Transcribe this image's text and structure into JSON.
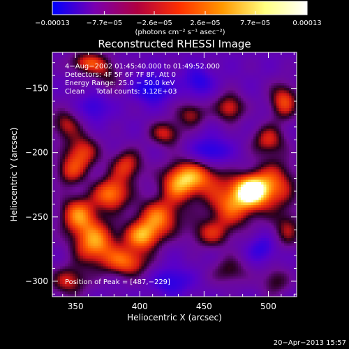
{
  "chart_data": {
    "type": "heatmap",
    "title": "Reconstructed RHESSI Image",
    "xlabel": "Heliocentric X (arcsec)",
    "ylabel": "Heliocentric Y (arcsec)",
    "xlim": [
      332,
      522
    ],
    "ylim": [
      -312,
      -122
    ],
    "x_ticks": [
      350,
      400,
      450,
      500
    ],
    "y_ticks": [
      -300,
      -250,
      -200,
      -150
    ],
    "x_tick_labels": [
      "350",
      "400",
      "450",
      "500"
    ],
    "y_tick_labels": [
      "−300",
      "−250",
      "−200",
      "−150"
    ],
    "colorbar": {
      "min": -0.00013,
      "max": 0.00013,
      "ticks": [
        -0.00013,
        -7.7e-05,
        -2.6e-05,
        2.6e-05,
        7.7e-05,
        0.00013
      ],
      "tick_labels": [
        "−0.00013",
        "−7.7e−05",
        "−2.6e−05",
        "2.6e−05",
        "7.7e−05",
        "0.00013"
      ],
      "label": "(photons cm⁻² s⁻¹ asec⁻²)",
      "colors": [
        "#0000ff",
        "#7a00b0",
        "#b00040",
        "#ff3000",
        "#ff9800",
        "#ffff80",
        "#ffffff"
      ]
    },
    "info": [
      "4−Aug−2002 01:45:40.000 to 01:49:52.000",
      "Detectors: 4F 5F 6F 7F 8F, Att 0",
      "Energy Range: 25.0 − 50.0 keV",
      "Clean     Total counts: 3.12E+03"
    ],
    "peak_text": "Position of Peak = [487,−229]",
    "peak": [
      487,
      -229
    ],
    "blobs": [
      {
        "x": 487,
        "y": -229,
        "a": 1.0,
        "sx": 9,
        "sy": 8
      },
      {
        "x": 472,
        "y": -240,
        "a": 0.7,
        "sx": 14,
        "sy": 12
      },
      {
        "x": 505,
        "y": -225,
        "a": 0.6,
        "sx": 12,
        "sy": 14
      },
      {
        "x": 445,
        "y": -218,
        "a": 0.65,
        "sx": 14,
        "sy": 10
      },
      {
        "x": 430,
        "y": -225,
        "a": 0.6,
        "sx": 10,
        "sy": 10
      },
      {
        "x": 415,
        "y": -250,
        "a": 0.7,
        "sx": 12,
        "sy": 10
      },
      {
        "x": 402,
        "y": -265,
        "a": 0.75,
        "sx": 10,
        "sy": 8
      },
      {
        "x": 390,
        "y": -285,
        "a": 0.65,
        "sx": 12,
        "sy": 8
      },
      {
        "x": 365,
        "y": -270,
        "a": 0.8,
        "sx": 12,
        "sy": 12
      },
      {
        "x": 352,
        "y": -248,
        "a": 0.7,
        "sx": 10,
        "sy": 10
      },
      {
        "x": 378,
        "y": -232,
        "a": 0.75,
        "sx": 10,
        "sy": 9
      },
      {
        "x": 390,
        "y": -210,
        "a": 0.55,
        "sx": 9,
        "sy": 9
      },
      {
        "x": 355,
        "y": -200,
        "a": 0.6,
        "sx": 9,
        "sy": 10
      },
      {
        "x": 345,
        "y": -215,
        "a": 0.45,
        "sx": 8,
        "sy": 8
      },
      {
        "x": 342,
        "y": -178,
        "a": 0.45,
        "sx": 8,
        "sy": 8
      },
      {
        "x": 420,
        "y": -185,
        "a": 0.5,
        "sx": 9,
        "sy": 7
      },
      {
        "x": 440,
        "y": -170,
        "a": 0.45,
        "sx": 8,
        "sy": 7
      },
      {
        "x": 470,
        "y": -165,
        "a": 0.55,
        "sx": 8,
        "sy": 8
      },
      {
        "x": 512,
        "y": -160,
        "a": 0.6,
        "sx": 8,
        "sy": 10
      },
      {
        "x": 500,
        "y": -190,
        "a": 0.5,
        "sx": 9,
        "sy": 8
      },
      {
        "x": 455,
        "y": -263,
        "a": 0.45,
        "sx": 12,
        "sy": 8
      },
      {
        "x": 515,
        "y": -260,
        "a": 0.4,
        "sx": 8,
        "sy": 10
      },
      {
        "x": 470,
        "y": -292,
        "a": 0.35,
        "sx": 10,
        "sy": 8
      },
      {
        "x": 505,
        "y": -300,
        "a": 0.35,
        "sx": 8,
        "sy": 8
      },
      {
        "x": 345,
        "y": -300,
        "a": 0.5,
        "sx": 10,
        "sy": 8
      },
      {
        "x": 375,
        "y": -140,
        "a": 0.3,
        "sx": 8,
        "sy": 8
      },
      {
        "x": 360,
        "y": -130,
        "a": 0.6,
        "sx": 10,
        "sy": 6
      },
      {
        "x": 455,
        "y": -200,
        "a": -0.45,
        "sx": 10,
        "sy": 8
      },
      {
        "x": 410,
        "y": -150,
        "a": -0.45,
        "sx": 10,
        "sy": 8
      },
      {
        "x": 445,
        "y": -145,
        "a": -0.35,
        "sx": 8,
        "sy": 8
      },
      {
        "x": 425,
        "y": -300,
        "a": -0.35,
        "sx": 10,
        "sy": 8
      },
      {
        "x": 495,
        "y": -275,
        "a": -0.3,
        "sx": 8,
        "sy": 8
      },
      {
        "x": 365,
        "y": -165,
        "a": -0.3,
        "sx": 8,
        "sy": 8
      }
    ]
  },
  "footer": {
    "timestamp": "20−Apr−2013 15:57"
  }
}
